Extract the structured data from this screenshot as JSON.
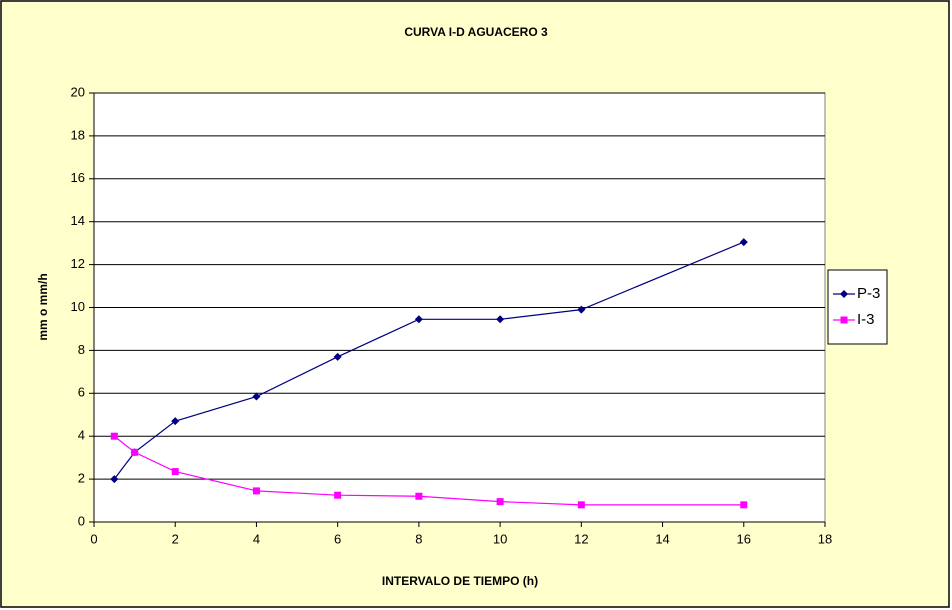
{
  "chart_data": {
    "type": "line",
    "title": "CURVA I-D  AGUACERO 3",
    "x_label": "INTERVALO DE TIEMPO (h)",
    "y_label": "mm  o  mm/h",
    "x": [
      0.5,
      1,
      2,
      4,
      6,
      8,
      10,
      12,
      16
    ],
    "series": [
      {
        "name": "P-3",
        "color": "#000080",
        "marker": "diamond",
        "values": [
          2.0,
          3.25,
          4.7,
          5.85,
          7.7,
          9.45,
          9.45,
          9.9,
          13.05
        ]
      },
      {
        "name": "I-3",
        "color": "#ff00ff",
        "marker": "square",
        "values": [
          4.0,
          3.25,
          2.35,
          1.45,
          1.25,
          1.2,
          0.95,
          0.8,
          0.8
        ]
      }
    ],
    "xlim": [
      0,
      18
    ],
    "xticks": [
      0,
      2,
      4,
      6,
      8,
      10,
      12,
      14,
      16,
      18
    ],
    "ylim": [
      0,
      20
    ],
    "yticks": [
      0,
      2,
      4,
      6,
      8,
      10,
      12,
      14,
      16,
      18,
      20
    ],
    "grid": true,
    "legend": "right"
  }
}
